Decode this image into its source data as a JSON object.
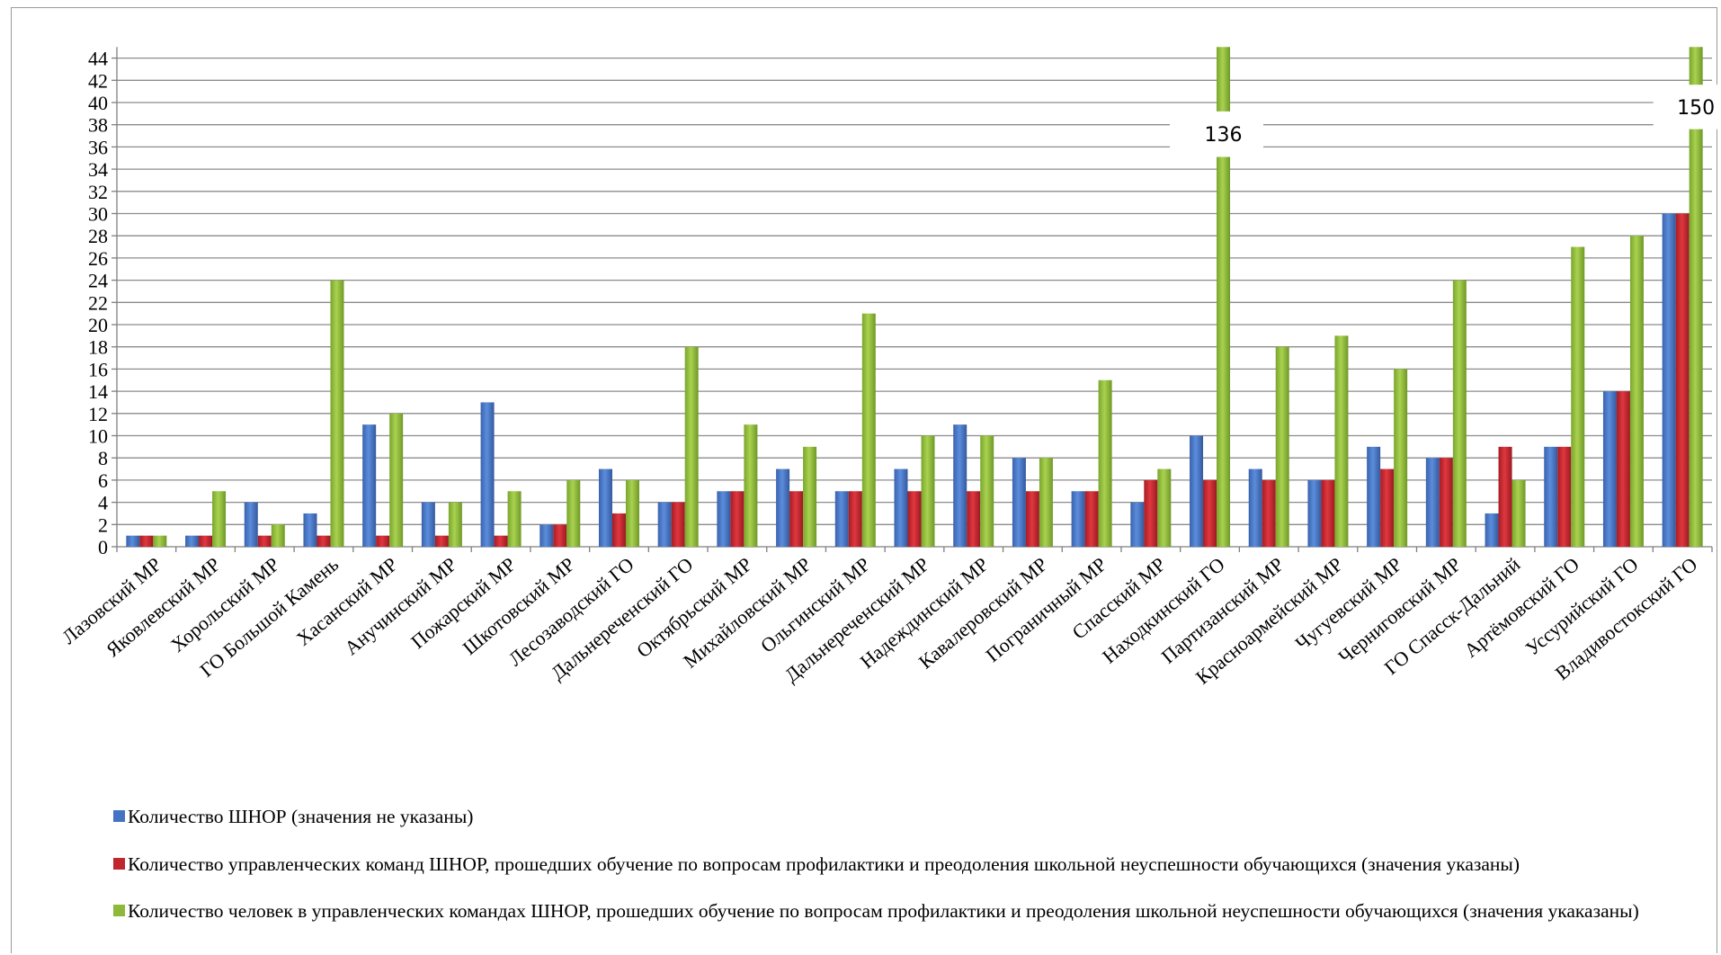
{
  "chart_data": {
    "type": "bar",
    "title": "",
    "xlabel": "",
    "ylabel": "",
    "ylim": [
      0,
      45
    ],
    "y_ticks": [
      0,
      2,
      4,
      6,
      8,
      10,
      12,
      14,
      16,
      18,
      20,
      22,
      24,
      26,
      28,
      30,
      32,
      34,
      36,
      38,
      40,
      42,
      44
    ],
    "grid": "horizontal",
    "legend_position": "bottom",
    "y_axis_break": true,
    "categories": [
      "Лазовский МР",
      "Яковлевский МР",
      "Хорольский МР",
      "ГО Большой Камень",
      "Хасанский МР",
      "Анучинский МР",
      "Пожарский МР",
      "Шкотовский МР",
      "Лесозаводский ГО",
      "Дальнереченский ГО",
      "Октябрьский МР",
      "Михайловский МР",
      "Ольгинский МР",
      "Дальнереченский МР",
      "Надеждинский МР",
      "Кавалеровский МР",
      "Пограничный МР",
      "Спасский МР",
      "Находкинский ГО",
      "Партизанский МР",
      "Красноармейский МР",
      "Чугуевский МР",
      "Черниговский МР",
      "ГО Спасск-Дальний",
      "Артёмовский ГО",
      "Уссурийский ГО",
      "Владивостокский ГО"
    ],
    "series": [
      {
        "name": "Количество ШНОР (значения не указаны)",
        "color": "#4472C4",
        "values": [
          1,
          1,
          4,
          3,
          11,
          4,
          13,
          2,
          7,
          4,
          5,
          7,
          5,
          7,
          11,
          8,
          5,
          4,
          10,
          7,
          6,
          9,
          8,
          3,
          9,
          14,
          30
        ]
      },
      {
        "name": "Количество управленческих команд ШНОР, прошедших обучение по вопросам профилактики и преодоления школьной неуспешности обучающихся (значения указаны)",
        "color": "#C0262D",
        "values": [
          1,
          1,
          1,
          1,
          1,
          1,
          1,
          2,
          3,
          4,
          5,
          5,
          5,
          5,
          5,
          5,
          5,
          6,
          6,
          6,
          6,
          7,
          8,
          9,
          9,
          14,
          30
        ]
      },
      {
        "name": "Количество человек в управленческих командах ШНОР, прошедших обучение по вопросам профилактики и преодоления школьной неуспешности обучающихся (значения укаказаны)",
        "color": "#8DB83A",
        "values": [
          1,
          5,
          2,
          24,
          12,
          4,
          5,
          6,
          6,
          18,
          11,
          9,
          21,
          10,
          10,
          8,
          15,
          7,
          136,
          18,
          19,
          16,
          24,
          6,
          27,
          28,
          150
        ]
      }
    ],
    "annotations": [
      {
        "category": "Находкинский ГО",
        "text": "136"
      },
      {
        "category": "Владивостокский ГО",
        "text": "150"
      }
    ]
  }
}
